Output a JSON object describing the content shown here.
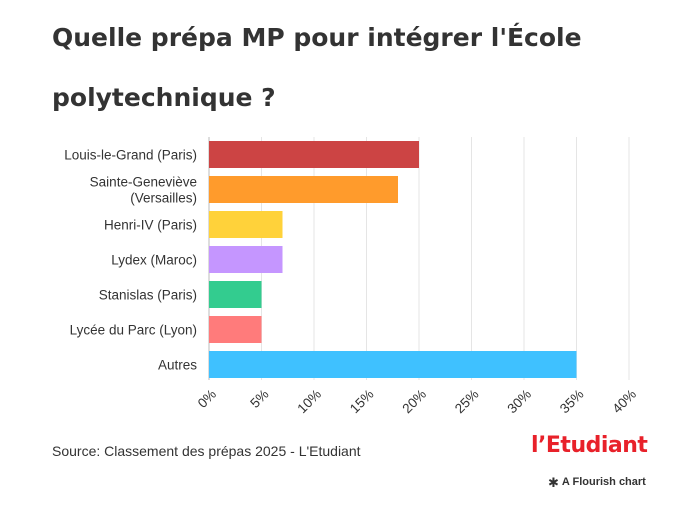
{
  "title": "Quelle prépa MP pour intégrer l'École polytechnique ?",
  "source": "Source: Classement des prépas 2025 - L'Etudiant",
  "logo_text": "l’Etudiant",
  "credit": {
    "icon": "flourish-asterisk-icon",
    "text": "A Flourish chart"
  },
  "chart_data": {
    "type": "bar",
    "orientation": "horizontal",
    "categories": [
      [
        "Louis-le-Grand (Paris)"
      ],
      [
        "Sainte-Geneviève",
        "(Versailles)"
      ],
      [
        "Henri-IV (Paris)"
      ],
      [
        "Lydex (Maroc)"
      ],
      [
        "Stanislas (Paris)"
      ],
      [
        "Lycée du Parc (Lyon)"
      ],
      [
        "Autres"
      ]
    ],
    "values": [
      20,
      18,
      7,
      7,
      5,
      5,
      35
    ],
    "colors": [
      "#cc4444",
      "#ff9b2c",
      "#ffd23a",
      "#c596ff",
      "#33cc8f",
      "#ff7b7b",
      "#3fc1ff"
    ],
    "xlim": [
      0,
      40
    ],
    "xticks": [
      "0%",
      "5%",
      "10%",
      "15%",
      "20%",
      "25%",
      "30%",
      "35%",
      "40%"
    ],
    "grid": true
  }
}
